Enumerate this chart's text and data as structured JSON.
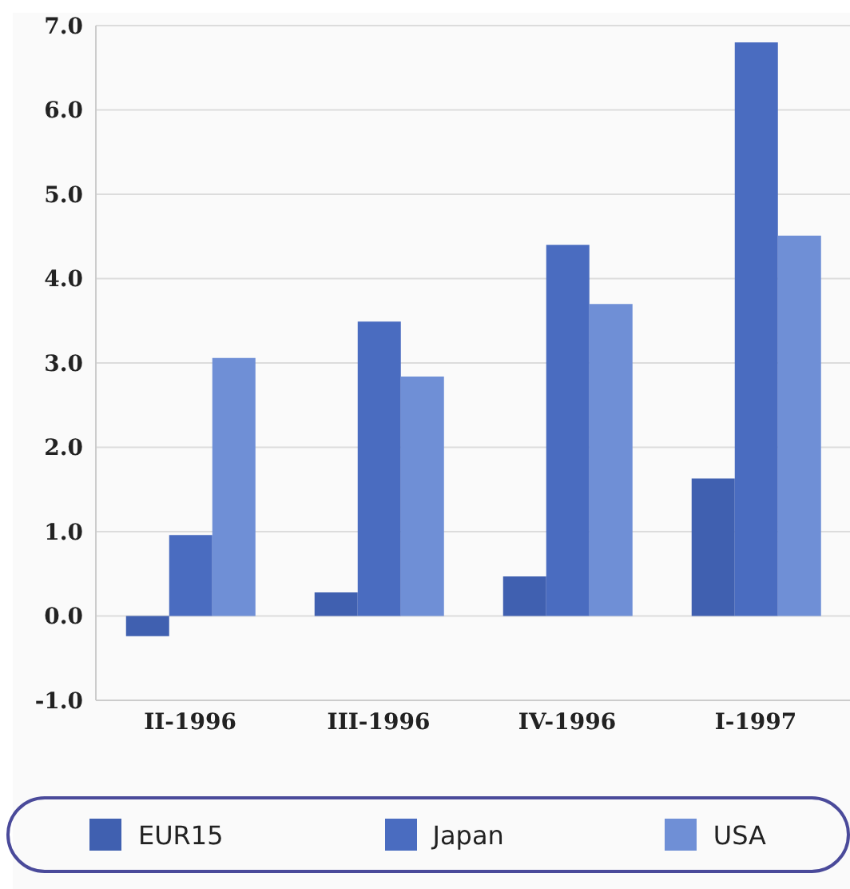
{
  "chart_data": {
    "type": "bar",
    "categories": [
      "II-1996",
      "III-1996",
      "IV-1996",
      "I-1997"
    ],
    "series": [
      {
        "name": "EUR15",
        "color": "#4060b0",
        "values": [
          -0.24,
          0.28,
          0.47,
          1.63
        ]
      },
      {
        "name": "Japan",
        "color": "#4a6cc0",
        "values": [
          0.96,
          3.49,
          4.4,
          6.8
        ]
      },
      {
        "name": "USA",
        "color": "#6f8fd6",
        "values": [
          3.06,
          2.84,
          3.7,
          4.51
        ]
      }
    ],
    "ylim": [
      -1,
      7
    ],
    "yticks": [
      {
        "value": -1,
        "label": "-1.0"
      },
      {
        "value": 0,
        "label": "0.0"
      },
      {
        "value": 1,
        "label": "1.0"
      },
      {
        "value": 2,
        "label": "2.0"
      },
      {
        "value": 3,
        "label": "3.0"
      },
      {
        "value": 4,
        "label": "4.0"
      },
      {
        "value": 5,
        "label": "5.0"
      },
      {
        "value": 6,
        "label": "6.0"
      },
      {
        "value": 7,
        "label": "7.0"
      }
    ],
    "grid": "y",
    "legend": "bottom"
  }
}
